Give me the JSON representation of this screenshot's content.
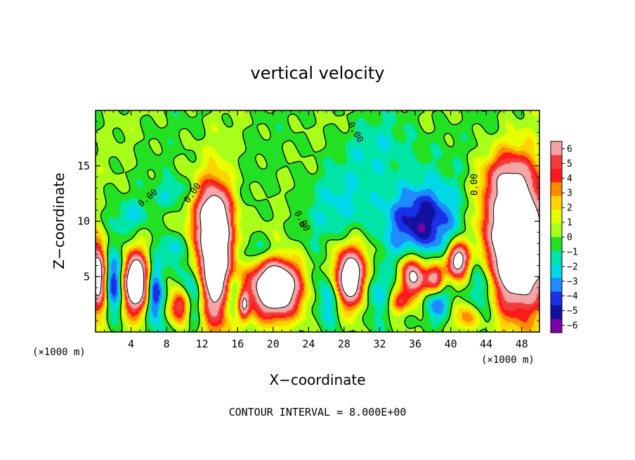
{
  "chart_data": {
    "type": "heatmap",
    "title": "vertical velocity",
    "xlabel": "X−coordinate",
    "ylabel": "Z−coordinate",
    "x_unit_left": "(×1000 m)",
    "x_unit_right": "(×1000 m)",
    "footer": "CONTOUR INTERVAL = 8.000E+00",
    "xlim": [
      0,
      50
    ],
    "ylim": [
      0,
      20
    ],
    "x_ticks": [
      4,
      8,
      12,
      16,
      20,
      24,
      28,
      32,
      36,
      40,
      44,
      48
    ],
    "y_ticks": [
      5,
      10,
      15
    ],
    "contour_label": "0.00",
    "colorbar": {
      "levels": [
        6,
        5,
        4,
        3,
        2,
        1,
        0,
        -1,
        -2,
        -3,
        -4,
        -5,
        -6
      ],
      "labels": [
        "6",
        "5",
        "4",
        "3",
        "2",
        "1",
        "0",
        "−1",
        "−2",
        "−3",
        "−4",
        "−5",
        "−6"
      ],
      "colors": [
        "#f4a4a4",
        "#f33b3b",
        "#ff1a1a",
        "#ff8c00",
        "#ffd400",
        "#e8ff00",
        "#a8ff1a",
        "#22e022",
        "#00e4a6",
        "#00d8e8",
        "#1e8cff",
        "#1a30e8",
        "#12129e",
        "#7a00a8"
      ]
    },
    "features": [
      {
        "kind": "updraft",
        "x": 0.3,
        "z": 5.0,
        "sx": 0.7,
        "sz": 2.2,
        "amp": 12
      },
      {
        "kind": "updraft",
        "x": 4.5,
        "z": 4.5,
        "sx": 1.0,
        "sz": 1.8,
        "amp": 14
      },
      {
        "kind": "updraft",
        "x": 9.5,
        "z": 2.3,
        "sx": 0.9,
        "sz": 1.1,
        "amp": 7
      },
      {
        "kind": "updraft",
        "x": 13.5,
        "z": 6.8,
        "sx": 1.4,
        "sz": 3.8,
        "amp": 15
      },
      {
        "kind": "updraft",
        "x": 16.7,
        "z": 2.5,
        "sx": 0.45,
        "sz": 1.0,
        "amp": 7
      },
      {
        "kind": "updraft",
        "x": 20.3,
        "z": 4.0,
        "sx": 2.0,
        "sz": 1.9,
        "amp": 14
      },
      {
        "kind": "updraft",
        "x": 28.7,
        "z": 4.8,
        "sx": 1.6,
        "sz": 1.9,
        "amp": 13
      },
      {
        "kind": "updraft",
        "x": 34.1,
        "z": 2.6,
        "sx": 0.8,
        "sz": 0.7,
        "amp": 4.5
      },
      {
        "kind": "updraft",
        "x": 35.8,
        "z": 5.0,
        "sx": 1.0,
        "sz": 1.4,
        "amp": 10
      },
      {
        "kind": "updraft",
        "x": 38.3,
        "z": 4.8,
        "sx": 0.8,
        "sz": 1.0,
        "amp": 9
      },
      {
        "kind": "updraft",
        "x": 40.8,
        "z": 6.5,
        "sx": 0.9,
        "sz": 1.1,
        "amp": 10
      },
      {
        "kind": "updraft",
        "x": 41.8,
        "z": 1.3,
        "sx": 1.2,
        "sz": 0.9,
        "amp": 4
      },
      {
        "kind": "updraft",
        "x": 47.5,
        "z": 8.0,
        "sx": 2.5,
        "sz": 4.0,
        "amp": 16
      },
      {
        "kind": "updraft",
        "x": 13.0,
        "z": 11.0,
        "sx": 1.7,
        "sz": 1.8,
        "amp": 4
      },
      {
        "kind": "updraft",
        "x": 46.5,
        "z": 14.0,
        "sx": 2.0,
        "sz": 1.6,
        "amp": 4
      },
      {
        "kind": "downdraft",
        "x": 2.0,
        "z": 4.5,
        "sx": 0.8,
        "sz": 2.0,
        "amp": -6
      },
      {
        "kind": "downdraft",
        "x": 6.7,
        "z": 3.5,
        "sx": 0.7,
        "sz": 2.0,
        "amp": -6
      },
      {
        "kind": "downdraft",
        "x": 11.0,
        "z": 3.5,
        "sx": 0.9,
        "sz": 2.0,
        "amp": -4.5
      },
      {
        "kind": "downdraft",
        "x": 8.5,
        "z": 7.5,
        "sx": 1.0,
        "sz": 1.0,
        "amp": -3
      },
      {
        "kind": "downdraft",
        "x": 15.5,
        "z": 3.5,
        "sx": 0.9,
        "sz": 1.5,
        "amp": -4.5
      },
      {
        "kind": "downdraft",
        "x": 18.5,
        "z": 7.2,
        "sx": 2.0,
        "sz": 0.9,
        "amp": -3
      },
      {
        "kind": "downdraft",
        "x": 26.5,
        "z": 3.5,
        "sx": 1.2,
        "sz": 2.0,
        "amp": -5.5
      },
      {
        "kind": "downdraft",
        "x": 31.0,
        "z": 4.0,
        "sx": 1.2,
        "sz": 1.7,
        "amp": -5
      },
      {
        "kind": "downdraft",
        "x": 36.5,
        "z": 10.0,
        "sx": 3.2,
        "sz": 2.5,
        "amp": -5.5
      },
      {
        "kind": "downdraft",
        "x": 38.5,
        "z": 3.0,
        "sx": 1.2,
        "sz": 1.6,
        "amp": -4.5
      },
      {
        "kind": "downdraft",
        "x": 43.5,
        "z": 4.5,
        "sx": 1.0,
        "sz": 2.5,
        "amp": -4.5
      },
      {
        "kind": "downdraft",
        "x": 9.0,
        "z": 12.5,
        "sx": 1.5,
        "sz": 1.0,
        "amp": -2.5
      },
      {
        "kind": "downdraft",
        "x": 4.0,
        "z": 10.5,
        "sx": 1.5,
        "sz": 1.0,
        "amp": -2
      },
      {
        "kind": "downdraft",
        "x": 27.0,
        "z": 11.5,
        "sx": 3.0,
        "sz": 2.5,
        "amp": -1.8
      },
      {
        "kind": "downdraft",
        "x": 33.0,
        "z": 16.5,
        "sx": 4.0,
        "sz": 2.0,
        "amp": -1.6
      }
    ]
  }
}
